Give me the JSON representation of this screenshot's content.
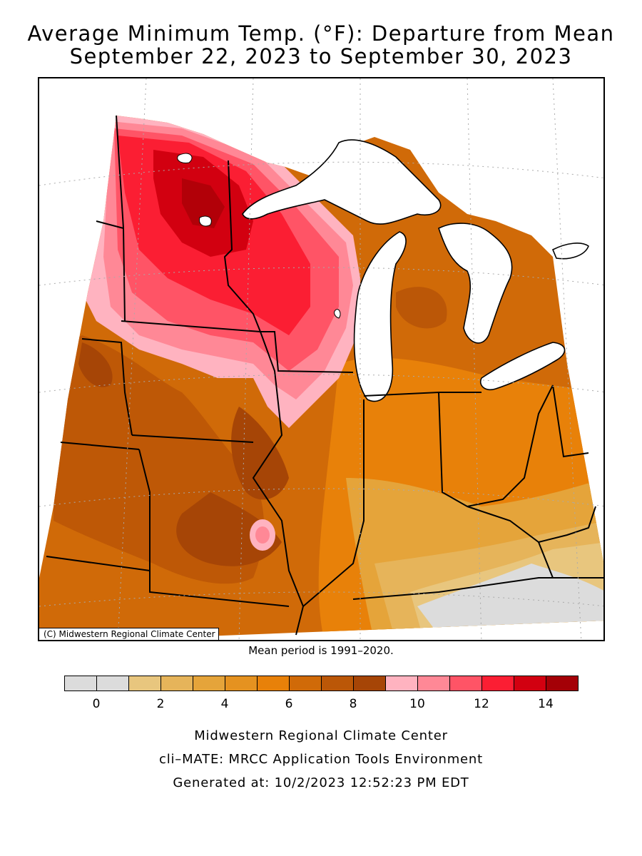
{
  "title": {
    "line1": "Average Minimum Temp. (°F): Departure from Mean",
    "line2": "September 22, 2023 to September 30, 2023"
  },
  "map": {
    "credit": "(C) Midwestern Regional Climate Center",
    "region": "Midwest United States"
  },
  "mean_period": "Mean period is 1991–2020.",
  "legend": {
    "bins": [
      {
        "from": -1,
        "to": 0,
        "color": "#dcdcdc"
      },
      {
        "from": 0,
        "to": 1,
        "color": "#dcdcdc"
      },
      {
        "from": 1,
        "to": 2,
        "color": "#e8c67e"
      },
      {
        "from": 2,
        "to": 3,
        "color": "#e6b45a"
      },
      {
        "from": 3,
        "to": 4,
        "color": "#e5a43a"
      },
      {
        "from": 4,
        "to": 5,
        "color": "#e59220"
      },
      {
        "from": 5,
        "to": 6,
        "color": "#e88109"
      },
      {
        "from": 6,
        "to": 7,
        "color": "#d06a08"
      },
      {
        "from": 7,
        "to": 8,
        "color": "#bb5707"
      },
      {
        "from": 8,
        "to": 9,
        "color": "#a64506"
      },
      {
        "from": 9,
        "to": 10,
        "color": "#ffb3c0"
      },
      {
        "from": 10,
        "to": 11,
        "color": "#ff8896"
      },
      {
        "from": 11,
        "to": 12,
        "color": "#ff5466"
      },
      {
        "from": 12,
        "to": 13,
        "color": "#fb1e33"
      },
      {
        "from": 13,
        "to": 14,
        "color": "#d20010"
      },
      {
        "from": 14,
        "to": 15,
        "color": "#a40006"
      }
    ],
    "tick_labels": [
      "0",
      "2",
      "4",
      "6",
      "8",
      "10",
      "12",
      "14"
    ]
  },
  "footer": {
    "line1": "Midwestern Regional Climate Center",
    "line2": "cli–MATE: MRCC Application Tools Environment",
    "line3": "Generated at: 10/2/2023 12:52:23 PM EDT"
  }
}
